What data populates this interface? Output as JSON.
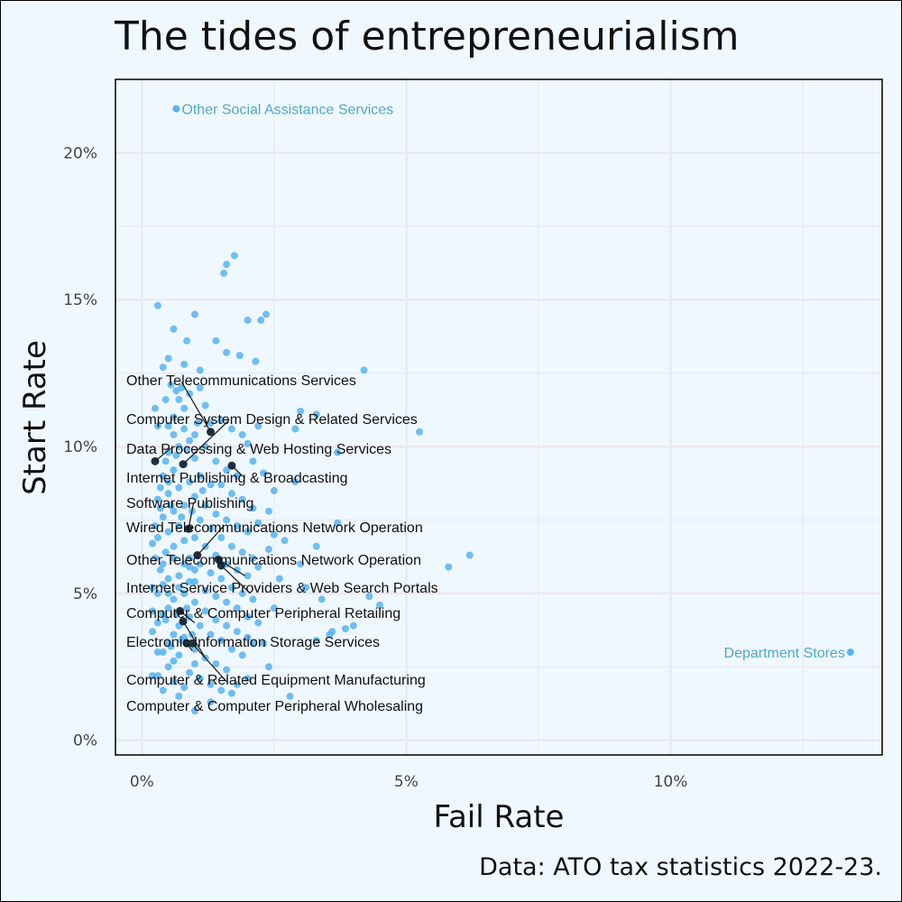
{
  "chart_data": {
    "type": "scatter",
    "title": "The tides of entrepreneurialism",
    "xlabel": "Fail Rate",
    "ylabel": "Start Rate",
    "caption": "Data: ATO tax statistics 2022-23.",
    "xlim": [
      -0.5,
      14
    ],
    "ylim": [
      -0.5,
      22.5
    ],
    "xticks": [
      0,
      5,
      10
    ],
    "yticks": [
      0,
      5,
      10,
      15,
      20
    ],
    "tick_suffix": "%",
    "grid": true,
    "colors": {
      "point": "#57b4f0",
      "highlight": "#1d3142",
      "outlier_label": "#4fa8c8",
      "background": "#f0f8ff",
      "grid": "#e9e9ee"
    },
    "background_points": [
      [
        0.3,
        14.8
      ],
      [
        0.6,
        14.0
      ],
      [
        0.4,
        12.7
      ],
      [
        0.5,
        13.0
      ],
      [
        0.8,
        12.8
      ],
      [
        0.85,
        13.6
      ],
      [
        1.0,
        14.5
      ],
      [
        1.1,
        12.6
      ],
      [
        1.4,
        13.6
      ],
      [
        1.6,
        13.2
      ],
      [
        1.55,
        15.9
      ],
      [
        1.6,
        16.2
      ],
      [
        1.75,
        16.5
      ],
      [
        2.0,
        14.3
      ],
      [
        2.25,
        14.3
      ],
      [
        2.35,
        14.5
      ],
      [
        1.85,
        13.1
      ],
      [
        2.15,
        12.9
      ],
      [
        4.2,
        12.6
      ],
      [
        5.25,
        10.5
      ],
      [
        3.0,
        11.2
      ],
      [
        3.3,
        11.1
      ],
      [
        2.9,
        10.6
      ],
      [
        3.7,
        9.8
      ],
      [
        2.9,
        8.8
      ],
      [
        2.4,
        7.8
      ],
      [
        3.7,
        7.4
      ],
      [
        3.3,
        6.6
      ],
      [
        3.0,
        6.0
      ],
      [
        5.8,
        5.9
      ],
      [
        6.2,
        6.3
      ],
      [
        3.1,
        5.2
      ],
      [
        3.4,
        4.8
      ],
      [
        4.5,
        4.6
      ],
      [
        4.3,
        4.9
      ],
      [
        4.0,
        3.9
      ],
      [
        3.85,
        3.8
      ],
      [
        3.6,
        3.7
      ],
      [
        3.55,
        3.6
      ],
      [
        3.3,
        3.4
      ],
      [
        2.4,
        2.5
      ],
      [
        2.8,
        1.5
      ],
      [
        0.4,
        1.7
      ],
      [
        0.7,
        1.5
      ],
      [
        1.3,
        1.3
      ],
      [
        1.0,
        1.0
      ],
      [
        1.8,
        1.9
      ],
      [
        2.0,
        2.1
      ],
      [
        0.2,
        2.2
      ],
      [
        0.3,
        2.2
      ],
      [
        0.5,
        2.5
      ],
      [
        0.6,
        2.7
      ],
      [
        0.7,
        2.9
      ],
      [
        0.3,
        3.0
      ],
      [
        0.4,
        3.0
      ],
      [
        0.5,
        3.3
      ],
      [
        0.6,
        3.6
      ],
      [
        0.7,
        3.9
      ],
      [
        0.2,
        3.7
      ],
      [
        0.3,
        4.0
      ],
      [
        0.4,
        4.3
      ],
      [
        0.2,
        4.4
      ],
      [
        0.5,
        4.5
      ],
      [
        0.6,
        4.8
      ],
      [
        0.3,
        5.0
      ],
      [
        0.2,
        5.2
      ],
      [
        0.4,
        5.3
      ],
      [
        0.5,
        5.5
      ],
      [
        0.7,
        5.6
      ],
      [
        0.9,
        5.9
      ],
      [
        0.35,
        5.8
      ],
      [
        0.25,
        6.2
      ],
      [
        0.45,
        6.4
      ],
      [
        0.6,
        6.6
      ],
      [
        0.8,
        6.8
      ],
      [
        0.3,
        6.9
      ],
      [
        0.5,
        7.1
      ],
      [
        0.7,
        7.3
      ],
      [
        0.4,
        7.6
      ],
      [
        0.6,
        7.8
      ],
      [
        0.8,
        8.0
      ],
      [
        0.3,
        8.2
      ],
      [
        0.5,
        8.4
      ],
      [
        0.7,
        8.6
      ],
      [
        0.9,
        8.8
      ],
      [
        0.4,
        9.0
      ],
      [
        0.6,
        9.2
      ],
      [
        0.8,
        9.4
      ],
      [
        1.0,
        9.6
      ],
      [
        0.5,
        9.8
      ],
      [
        0.7,
        10.0
      ],
      [
        0.9,
        10.2
      ],
      [
        0.3,
        10.7
      ],
      [
        0.5,
        10.7
      ],
      [
        0.8,
        10.6
      ],
      [
        1.0,
        10.4
      ],
      [
        0.6,
        11.0
      ],
      [
        0.8,
        11.3
      ],
      [
        0.7,
        11.6
      ],
      [
        0.9,
        11.8
      ],
      [
        0.55,
        12.1
      ],
      [
        0.75,
        12.0
      ],
      [
        1.1,
        12.0
      ],
      [
        0.65,
        11.9
      ],
      [
        1.2,
        11.4
      ],
      [
        1.3,
        10.8
      ],
      [
        1.5,
        10.9
      ],
      [
        1.7,
        10.6
      ],
      [
        1.9,
        10.4
      ],
      [
        2.2,
        10.7
      ],
      [
        2.0,
        10.1
      ],
      [
        1.2,
        10.0
      ],
      [
        1.4,
        9.5
      ],
      [
        1.6,
        9.2
      ],
      [
        1.8,
        9.0
      ],
      [
        2.1,
        9.5
      ],
      [
        2.3,
        9.1
      ],
      [
        1.1,
        9.0
      ],
      [
        1.3,
        8.7
      ],
      [
        1.5,
        8.7
      ],
      [
        1.7,
        8.4
      ],
      [
        1.9,
        8.2
      ],
      [
        2.1,
        7.9
      ],
      [
        1.0,
        8.3
      ],
      [
        1.2,
        8.0
      ],
      [
        1.4,
        7.7
      ],
      [
        1.6,
        7.5
      ],
      [
        1.8,
        7.3
      ],
      [
        2.0,
        7.1
      ],
      [
        2.2,
        7.4
      ],
      [
        1.1,
        7.5
      ],
      [
        1.3,
        7.2
      ],
      [
        1.5,
        6.9
      ],
      [
        1.7,
        6.6
      ],
      [
        1.9,
        6.4
      ],
      [
        2.1,
        6.2
      ],
      [
        1.0,
        6.9
      ],
      [
        1.2,
        6.6
      ],
      [
        1.4,
        6.3
      ],
      [
        1.6,
        6.0
      ],
      [
        1.8,
        5.8
      ],
      [
        2.0,
        5.6
      ],
      [
        2.2,
        5.9
      ],
      [
        0.9,
        6.2
      ],
      [
        1.1,
        6.0
      ],
      [
        1.3,
        5.7
      ],
      [
        1.5,
        5.5
      ],
      [
        1.7,
        5.2
      ],
      [
        1.9,
        5.0
      ],
      [
        2.1,
        4.8
      ],
      [
        1.0,
        5.4
      ],
      [
        1.2,
        5.1
      ],
      [
        1.4,
        4.9
      ],
      [
        1.6,
        4.7
      ],
      [
        1.8,
        4.5
      ],
      [
        2.0,
        4.2
      ],
      [
        2.2,
        4.0
      ],
      [
        0.8,
        5.0
      ],
      [
        1.0,
        4.7
      ],
      [
        1.2,
        4.4
      ],
      [
        1.4,
        4.1
      ],
      [
        1.6,
        3.9
      ],
      [
        1.8,
        3.7
      ],
      [
        2.0,
        3.5
      ],
      [
        0.9,
        4.2
      ],
      [
        1.1,
        3.9
      ],
      [
        1.3,
        3.6
      ],
      [
        1.5,
        3.4
      ],
      [
        1.7,
        3.1
      ],
      [
        1.9,
        2.9
      ],
      [
        2.1,
        3.3
      ],
      [
        0.8,
        3.5
      ],
      [
        1.0,
        3.1
      ],
      [
        1.2,
        2.8
      ],
      [
        1.4,
        2.6
      ],
      [
        1.6,
        2.4
      ],
      [
        0.9,
        2.3
      ],
      [
        1.1,
        2.1
      ],
      [
        1.3,
        1.9
      ],
      [
        1.5,
        1.7
      ],
      [
        1.7,
        1.6
      ],
      [
        0.6,
        2.0
      ],
      [
        0.8,
        1.8
      ],
      [
        1.0,
        2.6
      ],
      [
        0.4,
        6.0
      ],
      [
        0.6,
        6.2
      ],
      [
        0.8,
        6.0
      ],
      [
        1.0,
        5.8
      ],
      [
        0.5,
        5.0
      ],
      [
        0.7,
        5.2
      ],
      [
        0.9,
        5.4
      ],
      [
        0.45,
        4.1
      ],
      [
        0.65,
        4.3
      ],
      [
        0.85,
        4.5
      ],
      [
        0.55,
        3.2
      ],
      [
        0.75,
        3.4
      ],
      [
        0.95,
        3.6
      ],
      [
        0.35,
        8.6
      ],
      [
        0.55,
        8.0
      ],
      [
        0.75,
        7.6
      ],
      [
        0.95,
        7.8
      ],
      [
        1.15,
        8.5
      ],
      [
        0.45,
        9.5
      ],
      [
        0.65,
        9.7
      ],
      [
        0.85,
        9.9
      ],
      [
        1.05,
        10.8
      ],
      [
        0.25,
        11.3
      ],
      [
        0.45,
        11.6
      ],
      [
        2.5,
        8.5
      ],
      [
        2.4,
        6.5
      ],
      [
        2.6,
        5.5
      ],
      [
        2.5,
        4.5
      ],
      [
        2.3,
        3.3
      ],
      [
        2.5,
        7.0
      ],
      [
        2.7,
        6.8
      ],
      [
        0.2,
        6.7
      ],
      [
        0.25,
        7.3
      ],
      [
        0.35,
        7.9
      ],
      [
        0.5,
        8.8
      ],
      [
        0.6,
        10.4
      ]
    ],
    "outliers": [
      {
        "label": "Other Social Assistance Services",
        "x": 0.65,
        "y": 21.5
      },
      {
        "label": "Department Stores",
        "x": 13.4,
        "y": 3.0
      }
    ],
    "highlighted": [
      {
        "label": "Other Telecommunications Services",
        "x": 1.3,
        "y": 10.5,
        "lx": 0.75,
        "ly": 12.2
      },
      {
        "label": "Computer System Design & Related Services",
        "x": 0.78,
        "y": 9.4,
        "lx": 1.65,
        "ly": 10.9
      },
      {
        "label": "Data Processing & Web Hosting Services",
        "x": 0.25,
        "y": 9.5,
        "lx": 0.55,
        "ly": 9.95
      },
      {
        "label": "Internet Publishing & Broadcasting",
        "x": 1.7,
        "y": 9.35,
        "lx": 1.9,
        "ly": 9.0
      },
      {
        "label": "Software Publishing",
        "x": 0.88,
        "y": 7.2,
        "lx": 0.98,
        "ly": 8.1
      },
      {
        "label": "Wired Telecommunications Network Operation",
        "x": 1.05,
        "y": 6.3,
        "lx": 1.55,
        "ly": 7.3
      },
      {
        "label": "Other Telecommunications Network Operation",
        "x": 1.45,
        "y": 6.15,
        "lx": 1.95,
        "ly": 5.6
      },
      {
        "label": "Internet Service Providers & Web Search Portals",
        "x": 1.5,
        "y": 5.95,
        "lx": 2.05,
        "ly": 5.0
      },
      {
        "label": "Computer & Computer Peripheral Retailing",
        "x": 0.72,
        "y": 4.4,
        "lx": 1.0,
        "ly": 4.0
      },
      {
        "label": "Electronic Information Storage Services",
        "x": 0.85,
        "y": 3.3,
        "lx": 0.95,
        "ly": 3.05
      },
      {
        "label": "Computer & Related Equipment Manufacturing",
        "x": 0.78,
        "y": 4.05,
        "lx": 1.2,
        "ly": 2.8
      },
      {
        "label": "Computer & Computer Peripheral Wholesaling",
        "x": 0.95,
        "y": 3.3,
        "lx": 1.6,
        "ly": 2.0
      }
    ]
  }
}
